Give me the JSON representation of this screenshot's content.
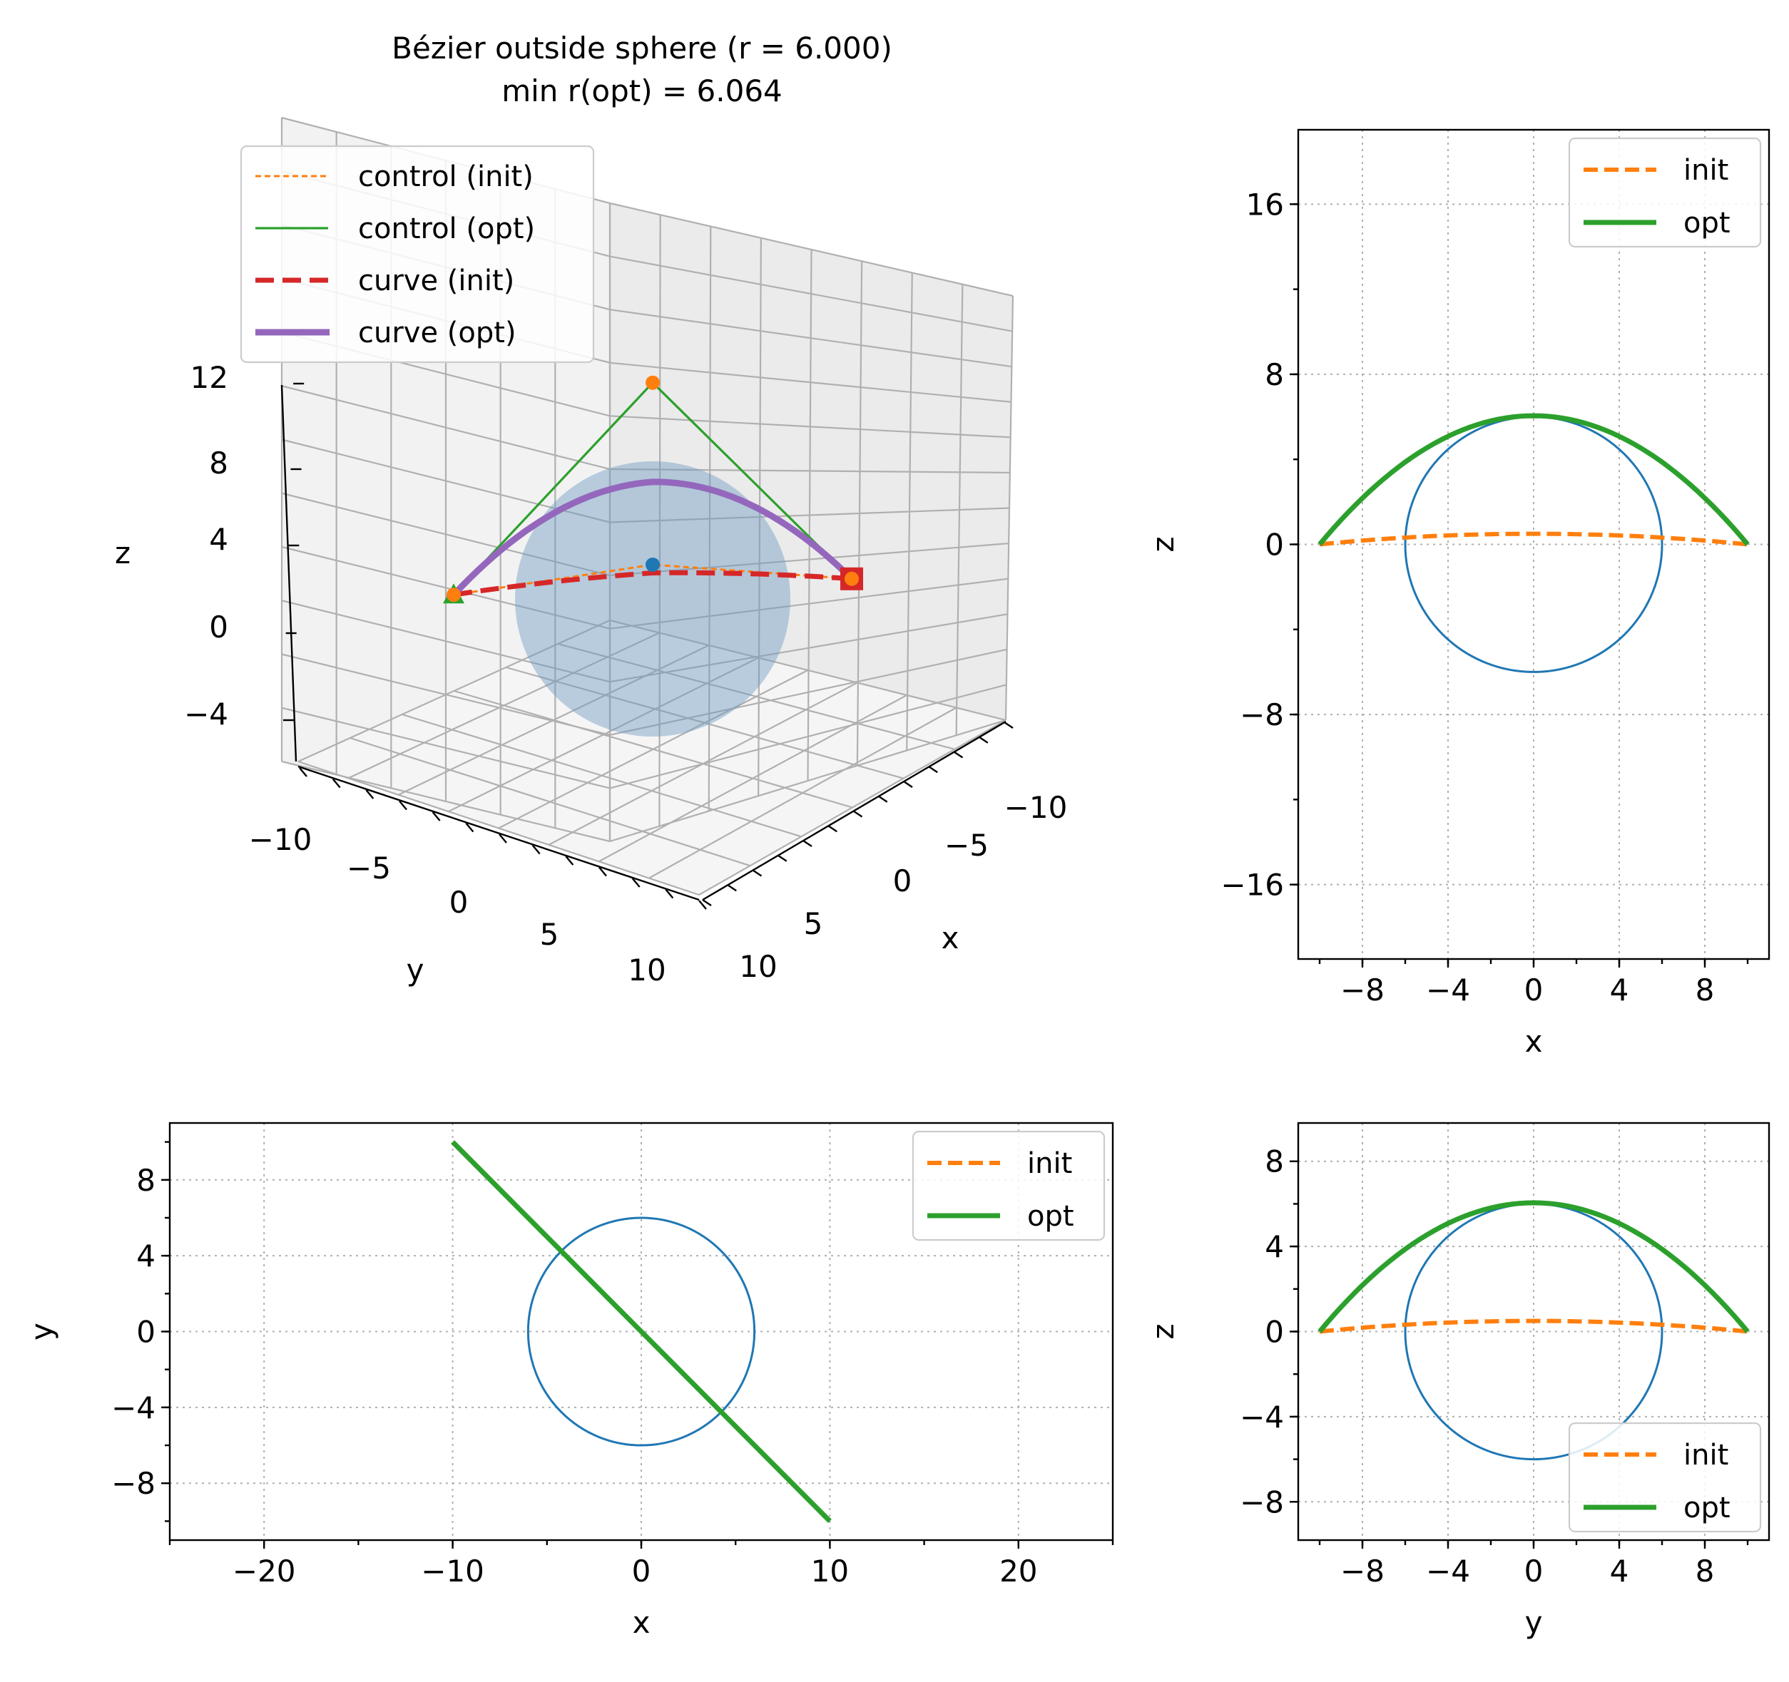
{
  "figure": {
    "title_line1": "Bézier outside sphere  (r = 6.000)",
    "title_line2": "min r(opt) = 6.064"
  },
  "colors": {
    "init_control": "#ff7f0e",
    "opt_control": "#2ca02c",
    "curve_init": "#d62728",
    "curve_opt": "#9467bd",
    "sphere": "#1f77b4",
    "grid": "#b0b0b0"
  },
  "chart_data": [
    {
      "id": "view3d",
      "type": "line",
      "projection": "3d",
      "title": "Bézier outside sphere  (r = 6.000)\nmin r(opt) = 6.064",
      "xlabel": "x",
      "ylabel": "y",
      "zlabel": "z",
      "xticks": [
        "−10",
        "−5",
        "0",
        "5",
        "10"
      ],
      "yticks": [
        "−10",
        "−5",
        "0",
        "5",
        "10"
      ],
      "zticks": [
        "−4",
        "0",
        "4",
        "8",
        "12"
      ],
      "legend": [
        "control (init)",
        "control (opt)",
        "curve (init)",
        "curve (opt)"
      ],
      "legend_position": "upper-left",
      "sphere": {
        "center": [
          0,
          0,
          0
        ],
        "r": 6.0
      },
      "control_init": {
        "x": [
          -10,
          0,
          10
        ],
        "y": [
          10,
          0,
          -10
        ],
        "z": [
          0,
          1,
          0
        ]
      },
      "control_opt": {
        "x": [
          -10,
          0,
          10
        ],
        "y": [
          10,
          0,
          -10
        ],
        "z": [
          0,
          12.1,
          0
        ]
      },
      "start_marker": [
        -10,
        10,
        0
      ],
      "end_marker": [
        10,
        -10,
        0
      ]
    },
    {
      "id": "xz",
      "type": "line",
      "xlabel": "x",
      "ylabel": "z",
      "xlim": [
        -11,
        11
      ],
      "ylim": [
        -19.5,
        19.5
      ],
      "xticks": [
        -8,
        -4,
        0,
        4,
        8
      ],
      "yticks": [
        -16,
        -8,
        0,
        8,
        16
      ],
      "xtick_labels": [
        "−8",
        "−4",
        "0",
        "4",
        "8"
      ],
      "ytick_labels": [
        "−16",
        "−8",
        "0",
        "8",
        "16"
      ],
      "legend_position": "upper-right",
      "circle_r": 6.0,
      "series": [
        {
          "name": "init",
          "style": "dashed",
          "x": [
            -10,
            -8,
            -6,
            -4,
            -2,
            0,
            2,
            4,
            6,
            8,
            10
          ],
          "y": [
            0,
            0.18,
            0.32,
            0.42,
            0.48,
            0.5,
            0.48,
            0.42,
            0.32,
            0.18,
            0
          ]
        },
        {
          "name": "opt",
          "style": "solid",
          "x": [
            -10,
            -8,
            -6,
            -4,
            -2,
            0,
            2,
            4,
            6,
            8,
            10
          ],
          "y": [
            0,
            2.18,
            3.87,
            5.08,
            5.81,
            6.05,
            5.81,
            5.08,
            3.87,
            2.18,
            0
          ]
        }
      ]
    },
    {
      "id": "xy",
      "type": "line",
      "xlabel": "x",
      "ylabel": "y",
      "xlim": [
        -25,
        25
      ],
      "ylim": [
        -11,
        11
      ],
      "xticks": [
        -20,
        -10,
        0,
        10,
        20
      ],
      "yticks": [
        -8,
        -4,
        0,
        4,
        8
      ],
      "xtick_labels": [
        "−20",
        "−10",
        "0",
        "10",
        "20"
      ],
      "ytick_labels": [
        "−8",
        "−4",
        "0",
        "4",
        "8"
      ],
      "legend_position": "upper-right",
      "circle_r": 6.0,
      "series": [
        {
          "name": "init",
          "style": "dashed",
          "x": [
            -10,
            10
          ],
          "y": [
            10,
            -10
          ]
        },
        {
          "name": "opt",
          "style": "solid",
          "x": [
            -10,
            10
          ],
          "y": [
            10,
            -10
          ]
        }
      ]
    },
    {
      "id": "yz",
      "type": "line",
      "xlabel": "y",
      "ylabel": "z",
      "xlim": [
        -11,
        11
      ],
      "ylim": [
        -9.8,
        9.8
      ],
      "xticks": [
        -8,
        -4,
        0,
        4,
        8
      ],
      "yticks": [
        -8,
        -4,
        0,
        4,
        8
      ],
      "xtick_labels": [
        "−8",
        "−4",
        "0",
        "4",
        "8"
      ],
      "ytick_labels": [
        "−8",
        "−4",
        "0",
        "4",
        "8"
      ],
      "legend_position": "lower-right",
      "circle_r": 6.0,
      "series": [
        {
          "name": "init",
          "style": "dashed",
          "x": [
            -10,
            -8,
            -6,
            -4,
            -2,
            0,
            2,
            4,
            6,
            8,
            10
          ],
          "y": [
            0,
            0.18,
            0.32,
            0.42,
            0.48,
            0.5,
            0.48,
            0.42,
            0.32,
            0.18,
            0
          ]
        },
        {
          "name": "opt",
          "style": "solid",
          "x": [
            -10,
            -8,
            -6,
            -4,
            -2,
            0,
            2,
            4,
            6,
            8,
            10
          ],
          "y": [
            0,
            2.18,
            3.87,
            5.08,
            5.81,
            6.05,
            5.81,
            5.08,
            3.87,
            2.18,
            0
          ]
        }
      ]
    }
  ]
}
